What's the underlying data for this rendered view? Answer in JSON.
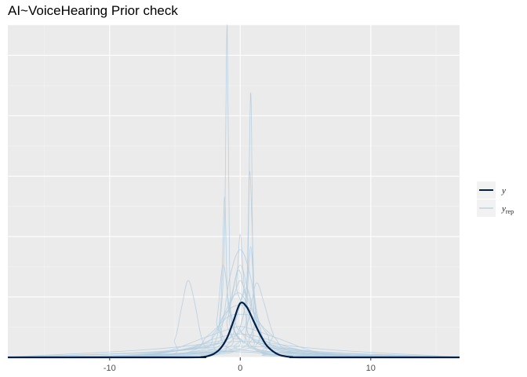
{
  "title": "AI~VoiceHearing Prior check",
  "chart_data": {
    "type": "line",
    "title": "AI~VoiceHearing Prior check",
    "xlabel": "",
    "ylabel": "",
    "xlim": [
      -17.8,
      16.8
    ],
    "ylim": [
      0,
      5.4
    ],
    "x_ticks": [
      -10,
      0,
      10
    ],
    "x_tick_labels": [
      "-10",
      "0",
      "10"
    ],
    "grid": true,
    "legend_position": "right",
    "legend": [
      {
        "key": "y",
        "label": "y",
        "sub": "",
        "color": "#011f4b"
      },
      {
        "key": "yrep",
        "label": "y",
        "sub": "rep",
        "color": "#b3cde0"
      }
    ],
    "series": [
      {
        "key": "y",
        "color": "#011f4b",
        "x": [
          -17.8,
          -4,
          -3,
          -2.5,
          -2,
          -1.5,
          -1,
          -0.5,
          0,
          0.5,
          1,
          1.5,
          2,
          2.5,
          3,
          3.5,
          4,
          5,
          16.8
        ],
        "y": [
          0,
          0,
          0.005,
          0.02,
          0.06,
          0.15,
          0.32,
          0.6,
          0.88,
          0.82,
          0.6,
          0.38,
          0.2,
          0.1,
          0.04,
          0.015,
          0.005,
          0,
          0
        ]
      },
      {
        "key": "yrep",
        "color": "#b3cde0",
        "x": [
          -17.8,
          -12,
          -8,
          -5,
          -3,
          -2,
          -1.5,
          -1.2,
          -1,
          -0.8,
          -0.5,
          0,
          0.5,
          0.8,
          1,
          1.3,
          1.8,
          3,
          5,
          8,
          12,
          16.8
        ],
        "y": [
          0,
          0.01,
          0.04,
          0.1,
          0.2,
          0.35,
          0.7,
          2.0,
          5.4,
          1.2,
          0.5,
          0.3,
          0.6,
          4.3,
          1.0,
          0.5,
          0.3,
          0.15,
          0.08,
          0.03,
          0.01,
          0
        ]
      },
      {
        "key": "yrep",
        "color": "#b3cde0",
        "x": [
          -17.8,
          -6,
          -5,
          -4.5,
          -4,
          -3.5,
          -3,
          -2.5,
          -1,
          1,
          3,
          6,
          16.8
        ],
        "y": [
          0,
          0.02,
          0.3,
          0.8,
          1.25,
          0.9,
          0.35,
          0.15,
          0.1,
          0.08,
          0.04,
          0.01,
          0
        ]
      },
      {
        "key": "yrep",
        "color": "#b3cde0",
        "x": [
          -17.8,
          -3,
          -2,
          -1.5,
          -1.2,
          -1,
          -0.7,
          -0.3,
          0,
          0.3,
          1,
          2,
          3,
          16.8
        ],
        "y": [
          0,
          0.02,
          0.2,
          0.8,
          2.6,
          1.1,
          0.4,
          0.3,
          0.3,
          0.25,
          0.15,
          0.06,
          0.02,
          0
        ]
      },
      {
        "key": "yrep",
        "color": "#b3cde0",
        "x": [
          -17.8,
          -2,
          -1,
          0,
          0.5,
          0.7,
          0.9,
          1.1,
          1.4,
          2,
          3,
          16.8
        ],
        "y": [
          0,
          0.05,
          0.2,
          0.5,
          1.2,
          3.0,
          2.2,
          0.9,
          0.4,
          0.15,
          0.03,
          0
        ]
      },
      {
        "key": "yrep",
        "color": "#b3cde0",
        "x": [
          -17.8,
          -3,
          -1.5,
          -0.5,
          0,
          0.5,
          1.5,
          3,
          16.8
        ],
        "y": [
          0,
          0.1,
          0.5,
          1.0,
          1.25,
          1.0,
          0.5,
          0.1,
          0
        ]
      },
      {
        "key": "yrep",
        "color": "#b3cde0",
        "x": [
          -17.8,
          -2.5,
          -1.5,
          -0.8,
          0,
          0.8,
          1.5,
          2.5,
          16.8
        ],
        "y": [
          0,
          0.05,
          0.4,
          1.3,
          1.75,
          1.3,
          0.4,
          0.05,
          0
        ]
      },
      {
        "key": "yrep",
        "color": "#b3cde0",
        "x": [
          -17.8,
          -10,
          -6,
          -3,
          -1,
          0,
          1,
          3,
          6,
          10,
          16.8
        ],
        "y": [
          0,
          0.01,
          0.08,
          0.3,
          0.45,
          0.5,
          0.45,
          0.3,
          0.08,
          0.01,
          0
        ]
      },
      {
        "key": "yrep",
        "color": "#b3cde0",
        "x": [
          -17.8,
          -9,
          -5,
          -2,
          0,
          2,
          5,
          9,
          16.8
        ],
        "y": [
          0,
          0.02,
          0.1,
          0.22,
          0.26,
          0.22,
          0.1,
          0.02,
          0
        ]
      },
      {
        "key": "yrep",
        "color": "#b3cde0",
        "x": [
          -17.8,
          -12,
          -7,
          -3,
          0,
          3,
          7,
          12,
          16.8
        ],
        "y": [
          0,
          0.01,
          0.06,
          0.15,
          0.18,
          0.15,
          0.06,
          0.01,
          0
        ]
      },
      {
        "key": "yrep",
        "color": "#b3cde0",
        "x": [
          -17.8,
          -4,
          -2,
          -1,
          0,
          1,
          2,
          4,
          16.8
        ],
        "y": [
          0,
          0.08,
          0.4,
          0.75,
          0.85,
          0.75,
          0.4,
          0.08,
          0
        ]
      },
      {
        "key": "yrep",
        "color": "#b3cde0",
        "x": [
          -17.8,
          -1,
          0,
          0.5,
          0.8,
          1.1,
          1.5,
          2,
          3,
          16.8
        ],
        "y": [
          0,
          0.1,
          0.5,
          1.0,
          1.8,
          1.0,
          0.5,
          0.2,
          0.05,
          0
        ]
      },
      {
        "key": "yrep",
        "color": "#b3cde0",
        "x": [
          -17.8,
          -2,
          -1,
          -0.2,
          0.3,
          1,
          2,
          16.8
        ],
        "y": [
          0,
          0.1,
          0.6,
          1.4,
          1.1,
          0.4,
          0.1,
          0
        ]
      },
      {
        "key": "yrep",
        "color": "#b3cde0",
        "x": [
          -17.8,
          -1.5,
          -0.5,
          0.2,
          0.6,
          1.2,
          2,
          16.8
        ],
        "y": [
          0,
          0.1,
          0.5,
          1.0,
          1.1,
          0.6,
          0.1,
          0
        ]
      },
      {
        "key": "yrep",
        "color": "#b3cde0",
        "x": [
          -17.8,
          -3,
          -1.5,
          -0.5,
          0.2,
          1,
          2.5,
          16.8
        ],
        "y": [
          0,
          0.15,
          0.6,
          1.0,
          1.0,
          0.6,
          0.15,
          0
        ]
      },
      {
        "key": "yrep",
        "color": "#b3cde0",
        "x": [
          -17.8,
          -8,
          -4,
          -2,
          0,
          2,
          4,
          8,
          16.8
        ],
        "y": [
          0,
          0.03,
          0.15,
          0.3,
          0.38,
          0.3,
          0.15,
          0.03,
          0
        ]
      },
      {
        "key": "yrep",
        "color": "#b3cde0",
        "x": [
          -17.8,
          -2,
          -0.8,
          0,
          0.8,
          2,
          16.8
        ],
        "y": [
          0,
          0.2,
          0.9,
          1.5,
          0.9,
          0.2,
          0
        ]
      },
      {
        "key": "yrep",
        "color": "#b3cde0",
        "x": [
          -17.8,
          -5,
          -2.5,
          -1,
          0,
          1,
          2.5,
          5,
          16.8
        ],
        "y": [
          0,
          0.05,
          0.35,
          0.65,
          0.7,
          0.65,
          0.35,
          0.05,
          0
        ]
      },
      {
        "key": "yrep",
        "color": "#b3cde0",
        "x": [
          -17.8,
          -1,
          -0.3,
          0,
          0.3,
          1,
          16.8
        ],
        "y": [
          0,
          0.3,
          1.2,
          2.0,
          1.2,
          0.3,
          0
        ]
      },
      {
        "key": "yrep",
        "color": "#b3cde0",
        "x": [
          -17.8,
          -2.5,
          -1.8,
          -1.3,
          -0.7,
          0,
          1,
          16.8
        ],
        "y": [
          0,
          0.1,
          0.6,
          1.5,
          0.6,
          0.3,
          0.1,
          0
        ]
      },
      {
        "key": "yrep",
        "color": "#b3cde0",
        "x": [
          -17.8,
          -0.5,
          0.5,
          1.2,
          1.8,
          2.5,
          3.5,
          16.8
        ],
        "y": [
          0,
          0.1,
          0.5,
          1.2,
          0.9,
          0.4,
          0.1,
          0
        ]
      }
    ]
  }
}
